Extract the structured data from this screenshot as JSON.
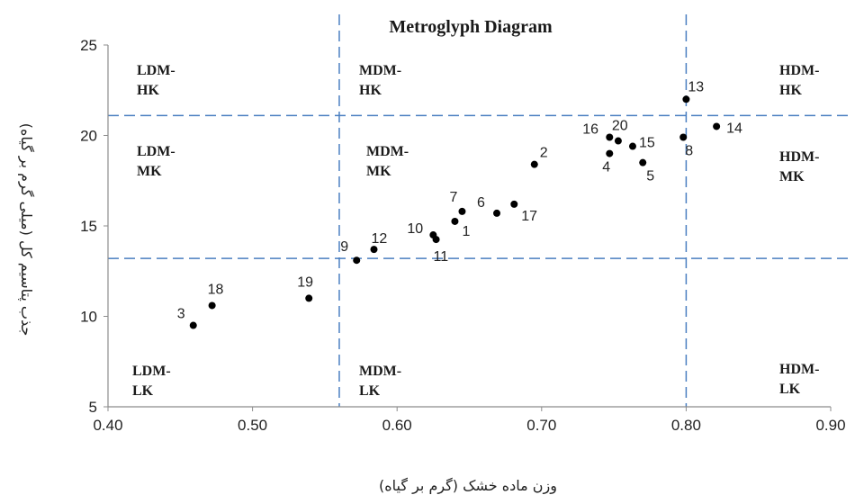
{
  "chart_data": {
    "type": "scatter",
    "title": "Metroglyph Diagram",
    "xlabel": "وزن ماده خشک (گرم بر گیاه)",
    "ylabel": "جذب پتاسیم کل (میلی گرم بر گیاه)",
    "xlim": [
      0.4,
      0.9
    ],
    "ylim": [
      5,
      25
    ],
    "xticks": [
      "0.40",
      "0.50",
      "0.60",
      "0.70",
      "0.80",
      "0.90"
    ],
    "yticks": [
      "5",
      "10",
      "15",
      "20",
      "25"
    ],
    "grid": false,
    "divider_lines": {
      "x": [
        0.56,
        0.8
      ],
      "y": [
        13.2,
        21.1
      ]
    },
    "points": [
      {
        "label": "1",
        "x": 0.64,
        "y": 15.25
      },
      {
        "label": "2",
        "x": 0.695,
        "y": 18.4
      },
      {
        "label": "3",
        "x": 0.459,
        "y": 9.5
      },
      {
        "label": "4",
        "x": 0.747,
        "y": 19.0
      },
      {
        "label": "5",
        "x": 0.77,
        "y": 18.5
      },
      {
        "label": "6",
        "x": 0.669,
        "y": 15.7
      },
      {
        "label": "7",
        "x": 0.645,
        "y": 15.8
      },
      {
        "label": "8",
        "x": 0.798,
        "y": 19.9
      },
      {
        "label": "9",
        "x": 0.572,
        "y": 13.1
      },
      {
        "label": "10",
        "x": 0.625,
        "y": 14.5
      },
      {
        "label": "11",
        "x": 0.627,
        "y": 14.25
      },
      {
        "label": "12",
        "x": 0.584,
        "y": 13.7
      },
      {
        "label": "13",
        "x": 0.8,
        "y": 22.0
      },
      {
        "label": "14",
        "x": 0.821,
        "y": 20.5
      },
      {
        "label": "15",
        "x": 0.763,
        "y": 19.4
      },
      {
        "label": "16",
        "x": 0.747,
        "y": 19.9
      },
      {
        "label": "17",
        "x": 0.681,
        "y": 16.2
      },
      {
        "label": "18",
        "x": 0.472,
        "y": 10.6
      },
      {
        "label": "19",
        "x": 0.539,
        "y": 11.0
      },
      {
        "label": "20",
        "x": 0.753,
        "y": 19.7
      }
    ],
    "regions": [
      {
        "line1": "LDM-",
        "line2": "HK"
      },
      {
        "line1": "MDM-",
        "line2": "HK"
      },
      {
        "line1": "HDM-",
        "line2": "HK"
      },
      {
        "line1": "LDM-",
        "line2": "MK"
      },
      {
        "line1": "MDM-",
        "line2": "MK"
      },
      {
        "line1": "HDM-",
        "line2": "MK"
      },
      {
        "line1": "LDM-",
        "line2": "LK"
      },
      {
        "line1": "MDM-",
        "line2": "LK"
      },
      {
        "line1": "HDM-",
        "line2": "LK"
      }
    ],
    "colors": {
      "divider": "#4a7fc1",
      "points": "#000000",
      "axis": "#8c8c8c"
    }
  }
}
